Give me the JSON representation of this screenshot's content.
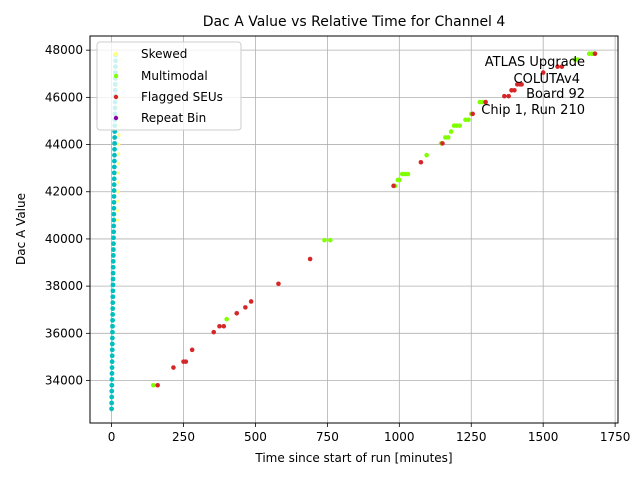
{
  "chart_data": {
    "type": "scatter",
    "title": "Dac A Value vs Relative Time for Channel 4",
    "xlabel": "Time since start of run [minutes]",
    "ylabel": "Dac A Value",
    "xlim": [
      -75,
      1760
    ],
    "ylim": [
      32200,
      48600
    ],
    "xticks": [
      0,
      250,
      500,
      750,
      1000,
      1250,
      1500,
      1750
    ],
    "yticks": [
      34000,
      36000,
      38000,
      40000,
      42000,
      44000,
      46000,
      48000
    ],
    "grid": true,
    "legend_position": "top-left",
    "annotation": [
      "ATLAS Upgrade",
      "COLUTAv4",
      "Board 92",
      "Chip 1, Run 210"
    ],
    "annotation_position": "top-right",
    "series": [
      {
        "name": "Skewed",
        "color": "#ffff80",
        "style": "dense-column",
        "x_range": [
          0,
          20
        ],
        "y_range": [
          32800,
          47800
        ],
        "step": 100
      },
      {
        "name": "Multimodal",
        "color": "#80ff00",
        "points": [
          [
            145,
            33800
          ],
          [
            400,
            36600
          ],
          [
            740,
            39950
          ],
          [
            760,
            39950
          ],
          [
            985,
            42250
          ],
          [
            995,
            42500
          ],
          [
            1000,
            42500
          ],
          [
            1010,
            42750
          ],
          [
            1020,
            42750
          ],
          [
            1030,
            42750
          ],
          [
            1095,
            43550
          ],
          [
            1145,
            44050
          ],
          [
            1160,
            44300
          ],
          [
            1170,
            44300
          ],
          [
            1180,
            44550
          ],
          [
            1190,
            44800
          ],
          [
            1200,
            44800
          ],
          [
            1210,
            44800
          ],
          [
            1230,
            45050
          ],
          [
            1240,
            45050
          ],
          [
            1250,
            45300
          ],
          [
            1280,
            45800
          ],
          [
            1290,
            45800
          ],
          [
            1610,
            47600
          ],
          [
            1620,
            47600
          ],
          [
            1660,
            47850
          ],
          [
            1670,
            47850
          ],
          [
            1680,
            47850
          ]
        ]
      },
      {
        "name": "Flagged SEUs",
        "color": "#d62728",
        "points": [
          [
            160,
            33800
          ],
          [
            215,
            34550
          ],
          [
            250,
            34800
          ],
          [
            258,
            34800
          ],
          [
            280,
            35300
          ],
          [
            355,
            36050
          ],
          [
            375,
            36300
          ],
          [
            390,
            36300
          ],
          [
            435,
            36850
          ],
          [
            465,
            37100
          ],
          [
            485,
            37350
          ],
          [
            580,
            38100
          ],
          [
            690,
            39150
          ],
          [
            980,
            42250
          ],
          [
            1075,
            43250
          ],
          [
            1150,
            44050
          ],
          [
            1255,
            45300
          ],
          [
            1300,
            45800
          ],
          [
            1365,
            46050
          ],
          [
            1380,
            46050
          ],
          [
            1390,
            46300
          ],
          [
            1400,
            46300
          ],
          [
            1410,
            46550
          ],
          [
            1420,
            46550
          ],
          [
            1425,
            46550
          ],
          [
            1500,
            47050
          ],
          [
            1550,
            47300
          ],
          [
            1565,
            47300
          ],
          [
            1680,
            47850
          ]
        ]
      },
      {
        "name": "Repeat Bin",
        "color": "#8a00a8",
        "points": []
      }
    ],
    "base_series": {
      "color": "#00bfbf",
      "x_range": [
        0,
        20
      ],
      "y_range": [
        32800,
        47800
      ],
      "step": 250
    }
  }
}
